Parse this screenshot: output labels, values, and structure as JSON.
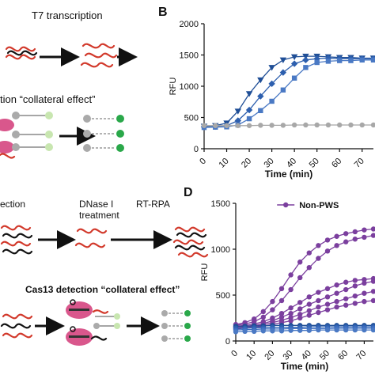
{
  "left_panel": {
    "t7_label": "T7 transcription",
    "collateral_label_1": "tion “collateral effect”",
    "detection_label": "ection",
    "dnase_label": "DNase I\ntreatment",
    "rtrpa_label": "RT-RPA",
    "cas13_label": "Cas13 detection “collateral effect”",
    "colors": {
      "rna": "#d2392b",
      "dna": "#111111",
      "protein": "#d9578c",
      "reporter_off": "#aaaaaa",
      "reporter_on": "#2aa84a",
      "reporter_faint": "#c8e6b0"
    }
  },
  "panel_b": {
    "letter": "B",
    "chart_data": {
      "type": "line",
      "xlabel": "Time (min)",
      "ylabel": "RFU",
      "xlim": [
        0,
        75
      ],
      "ylim": [
        0,
        2000
      ],
      "xticks": [
        0,
        10,
        20,
        30,
        40,
        50,
        60,
        70
      ],
      "xtick_labels": [
        "0",
        "10",
        "20",
        "30",
        "40",
        "50",
        "60",
        "70"
      ],
      "yticks": [
        0,
        500,
        1000,
        1500,
        2000
      ],
      "ytick_labels": [
        "0",
        "500",
        "1000",
        "1500",
        "2000"
      ],
      "series": [
        {
          "color": "#1f4e96",
          "marker": "triangle-down",
          "x": [
            0,
            5,
            10,
            15,
            20,
            25,
            30,
            35,
            40,
            45,
            50,
            55,
            60,
            65,
            70,
            75
          ],
          "y": [
            360,
            370,
            410,
            600,
            880,
            1100,
            1300,
            1420,
            1470,
            1480,
            1480,
            1470,
            1460,
            1460,
            1450,
            1450
          ]
        },
        {
          "color": "#2d5fae",
          "marker": "diamond",
          "x": [
            0,
            5,
            10,
            15,
            20,
            25,
            30,
            35,
            40,
            45,
            50,
            55,
            60,
            65,
            70,
            75
          ],
          "y": [
            350,
            355,
            370,
            450,
            620,
            840,
            1040,
            1220,
            1360,
            1420,
            1440,
            1450,
            1440,
            1440,
            1440,
            1440
          ]
        },
        {
          "color": "#4a79c4",
          "marker": "square",
          "x": [
            0,
            5,
            10,
            15,
            20,
            25,
            30,
            35,
            40,
            45,
            50,
            55,
            60,
            65,
            70,
            75
          ],
          "y": [
            340,
            345,
            350,
            380,
            480,
            610,
            760,
            940,
            1130,
            1300,
            1380,
            1400,
            1410,
            1410,
            1420,
            1420
          ]
        },
        {
          "color": "#a8a8a8",
          "marker": "circle",
          "x": [
            0,
            5,
            10,
            15,
            20,
            25,
            30,
            35,
            40,
            45,
            50,
            55,
            60,
            65,
            70,
            75
          ],
          "y": [
            370,
            370,
            370,
            370,
            370,
            375,
            375,
            375,
            380,
            380,
            380,
            380,
            380,
            380,
            380,
            380
          ]
        }
      ]
    }
  },
  "panel_d": {
    "letter": "D",
    "chart_data": {
      "type": "line",
      "xlabel": "Time (min)",
      "ylabel": "RFU",
      "xlim": [
        0,
        75
      ],
      "ylim": [
        0,
        1500
      ],
      "xticks": [
        0,
        10,
        20,
        30,
        40,
        50,
        60,
        70
      ],
      "xtick_labels": [
        "0",
        "10",
        "20",
        "30",
        "40",
        "50",
        "60",
        "70"
      ],
      "yticks": [
        0,
        500,
        1000,
        1500
      ],
      "ytick_labels": [
        "0",
        "500",
        "1000",
        "1500"
      ],
      "legend": {
        "position": "top-center",
        "entries": [
          {
            "label": "Non-PWS",
            "color": "#7b3f9e"
          }
        ]
      },
      "series": [
        {
          "name": "Non-PWS",
          "color": "#7b3f9e",
          "marker": "circle",
          "x": [
            0,
            5,
            10,
            15,
            20,
            25,
            30,
            35,
            40,
            45,
            50,
            55,
            60,
            65,
            70,
            75
          ],
          "y": [
            180,
            200,
            240,
            320,
            430,
            570,
            720,
            860,
            960,
            1040,
            1100,
            1140,
            1170,
            1190,
            1210,
            1220
          ]
        },
        {
          "name": "Non-PWS",
          "color": "#7b3f9e",
          "marker": "circle",
          "x": [
            0,
            5,
            10,
            15,
            20,
            25,
            30,
            35,
            40,
            45,
            50,
            55,
            60,
            65,
            70,
            75
          ],
          "y": [
            170,
            185,
            210,
            260,
            340,
            440,
            560,
            690,
            800,
            900,
            980,
            1040,
            1080,
            1110,
            1130,
            1150
          ]
        },
        {
          "name": "Non-PWS",
          "color": "#7b3f9e",
          "marker": "circle",
          "x": [
            0,
            5,
            10,
            15,
            20,
            25,
            30,
            35,
            40,
            45,
            50,
            55,
            60,
            65,
            70,
            75
          ],
          "y": [
            160,
            170,
            185,
            210,
            250,
            300,
            360,
            420,
            480,
            530,
            570,
            610,
            640,
            660,
            670,
            680
          ]
        },
        {
          "name": "Non-PWS",
          "color": "#7b3f9e",
          "marker": "circle",
          "x": [
            0,
            5,
            10,
            15,
            20,
            25,
            30,
            35,
            40,
            45,
            50,
            55,
            60,
            65,
            70,
            75
          ],
          "y": [
            150,
            160,
            170,
            190,
            220,
            260,
            300,
            350,
            400,
            440,
            480,
            520,
            560,
            600,
            630,
            650
          ]
        },
        {
          "name": "Non-PWS",
          "color": "#7b3f9e",
          "marker": "circle",
          "x": [
            0,
            5,
            10,
            15,
            20,
            25,
            30,
            35,
            40,
            45,
            50,
            55,
            60,
            65,
            70,
            75
          ],
          "y": [
            140,
            150,
            160,
            175,
            200,
            225,
            255,
            290,
            330,
            370,
            400,
            430,
            460,
            490,
            520,
            540
          ]
        },
        {
          "name": "Non-PWS",
          "color": "#7b3f9e",
          "marker": "circle",
          "x": [
            0,
            5,
            10,
            15,
            20,
            25,
            30,
            35,
            40,
            45,
            50,
            55,
            60,
            65,
            70,
            75
          ],
          "y": [
            130,
            140,
            150,
            160,
            180,
            200,
            220,
            250,
            280,
            310,
            340,
            370,
            390,
            410,
            430,
            440
          ]
        },
        {
          "color": "#1f4e96",
          "marker": "circle",
          "x": [
            0,
            5,
            10,
            15,
            20,
            25,
            30,
            35,
            40,
            45,
            50,
            55,
            60,
            65,
            70,
            75
          ],
          "y": [
            160,
            160,
            165,
            165,
            170,
            170,
            170,
            170,
            170,
            170,
            170,
            170,
            170,
            170,
            170,
            170
          ]
        },
        {
          "color": "#2d5fae",
          "marker": "circle",
          "x": [
            0,
            5,
            10,
            15,
            20,
            25,
            30,
            35,
            40,
            45,
            50,
            55,
            60,
            65,
            70,
            75
          ],
          "y": [
            140,
            140,
            145,
            145,
            150,
            150,
            150,
            150,
            155,
            155,
            155,
            155,
            155,
            155,
            155,
            155
          ]
        },
        {
          "color": "#3b6cc0",
          "marker": "circle",
          "x": [
            0,
            5,
            10,
            15,
            20,
            25,
            30,
            35,
            40,
            45,
            50,
            55,
            60,
            65,
            70,
            75
          ],
          "y": [
            120,
            125,
            125,
            130,
            130,
            130,
            135,
            135,
            135,
            135,
            135,
            140,
            140,
            140,
            140,
            140
          ]
        },
        {
          "color": "#4a79c4",
          "marker": "circle",
          "x": [
            0,
            5,
            10,
            15,
            20,
            25,
            30,
            35,
            40,
            45,
            50,
            55,
            60,
            65,
            70,
            75
          ],
          "y": [
            100,
            105,
            105,
            110,
            110,
            110,
            115,
            115,
            115,
            120,
            120,
            120,
            120,
            120,
            120,
            120
          ]
        }
      ]
    }
  }
}
